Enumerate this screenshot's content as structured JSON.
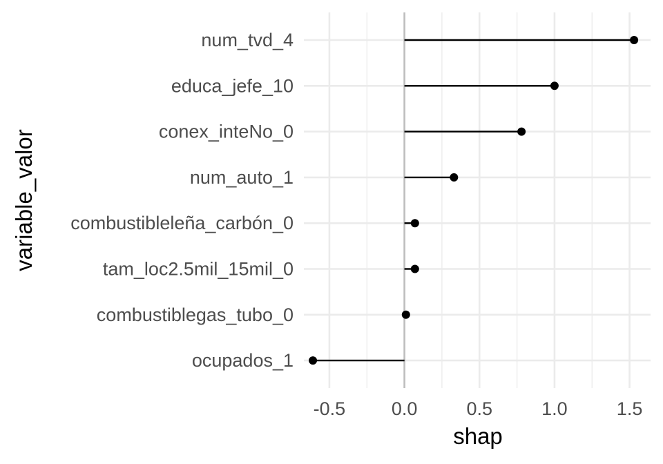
{
  "chart_data": {
    "type": "lollipop",
    "orientation": "horizontal",
    "xlabel": "shap",
    "ylabel": "variable_valor",
    "xlim": [
      -0.67,
      1.64
    ],
    "x_ticks": [
      -0.5,
      0.0,
      0.5,
      1.0,
      1.5
    ],
    "x_tick_labels": [
      "-0.5",
      "0.0",
      "0.5",
      "1.0",
      "1.5"
    ],
    "reference_line": 0,
    "grid": true,
    "colors": {
      "mark": "#000000",
      "grid": "#ebebeb",
      "reference": "#bebebe"
    },
    "categories": [
      "num_tvd_4",
      "educa_jefe_10",
      "conex_inteNo_0",
      "num_auto_1",
      "combustibleleña_carbón_0",
      "tam_loc2.5mil_15mil_0",
      "combustiblegas_tubo_0",
      "ocupados_1"
    ],
    "values": [
      1.53,
      1.0,
      0.78,
      0.33,
      0.07,
      0.07,
      0.01,
      -0.61
    ]
  }
}
